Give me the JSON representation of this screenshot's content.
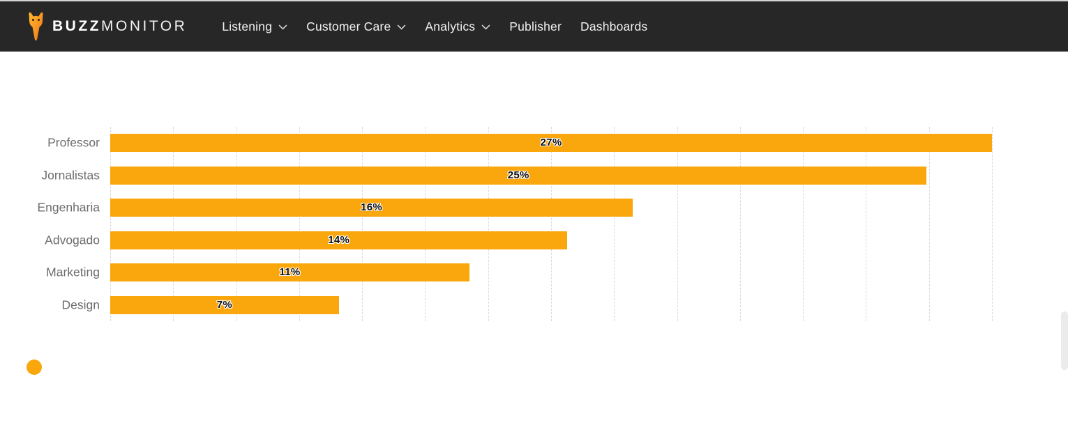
{
  "header": {
    "brand": {
      "bold": "BUZZ",
      "light": "MONITOR"
    },
    "nav": [
      {
        "label": "Listening",
        "has_dropdown": true
      },
      {
        "label": "Customer Care",
        "has_dropdown": true
      },
      {
        "label": "Analytics",
        "has_dropdown": true
      },
      {
        "label": "Publisher",
        "has_dropdown": false
      },
      {
        "label": "Dashboards",
        "has_dropdown": false
      }
    ]
  },
  "icons": {
    "logo": "buzzmonitor-bird-icon",
    "dropdown": "chevron-down-icon"
  },
  "chart_data": {
    "type": "bar",
    "orientation": "horizontal",
    "categories": [
      "Professor",
      "Jornalistas",
      "Engenharia",
      "Advogado",
      "Marketing",
      "Design"
    ],
    "values": [
      27,
      25,
      16,
      14,
      11,
      7
    ],
    "value_labels": [
      "27%",
      "25%",
      "16%",
      "14%",
      "11%",
      "7%"
    ],
    "title": "",
    "xlabel": "",
    "ylabel": "",
    "xlim": [
      0,
      27
    ],
    "grid": "vertical-dashed",
    "gridline_count": 15,
    "data_label_position": "center-of-bar",
    "legend_position": "bottom-left",
    "legend_label": ""
  },
  "colors": {
    "bar": "#F9A70D",
    "header_bg": "#272727",
    "grid": "#D9D9D9",
    "category_label": "#6D6D6D",
    "nav_text": "#F1F1F1"
  }
}
